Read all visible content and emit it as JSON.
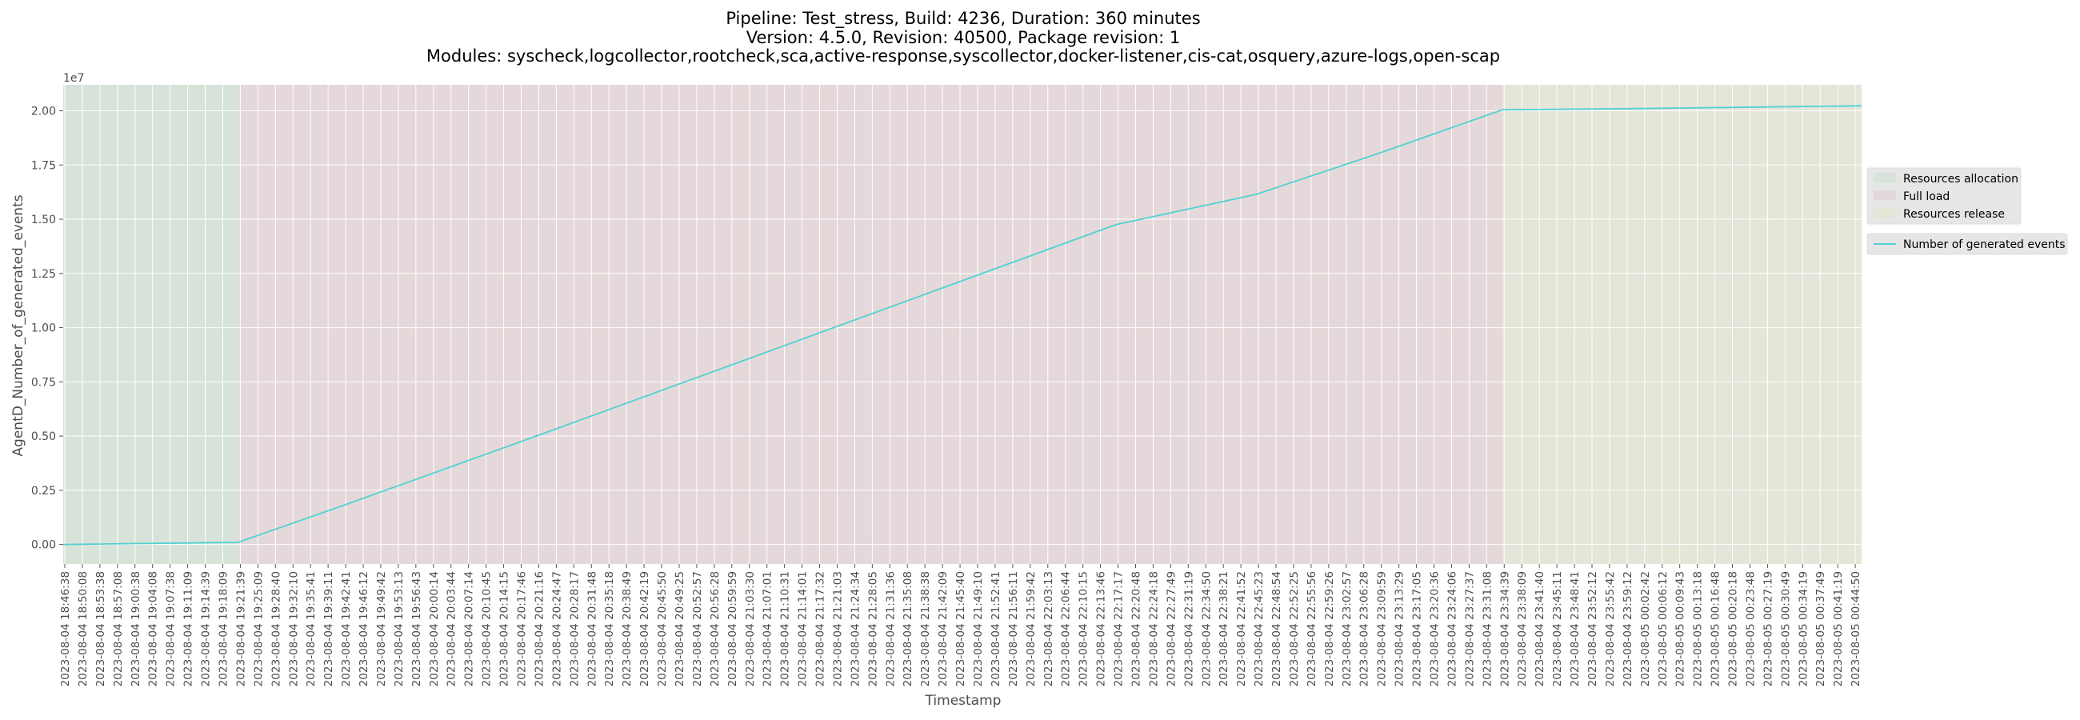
{
  "chart_data": {
    "type": "line",
    "title_lines": [
      "Pipeline: Test_stress, Build: 4236, Duration: 360 minutes",
      "Version: 4.5.0, Revision: 40500, Package revision: 1",
      "Modules: syscheck,logcollector,rootcheck,sca,active-response,syscollector,docker-listener,cis-cat,osquery,azure-logs,open-scap"
    ],
    "xlabel": "Timestamp",
    "ylabel": "AgentD_Number_of_generated_events",
    "y_offset_label": "1e7",
    "ylim": [
      -900000,
      21200000
    ],
    "y_ticks": [
      0,
      2500000,
      5000000,
      7500000,
      10000000,
      12500000,
      15000000,
      17500000,
      20000000
    ],
    "y_tick_labels": [
      "0.00",
      "0.25",
      "0.50",
      "0.75",
      "1.00",
      "1.25",
      "1.50",
      "1.75",
      "2.00"
    ],
    "x_tick_labels": [
      "2023-08-04 18:46:38",
      "2023-08-04 18:50:08",
      "2023-08-04 18:53:38",
      "2023-08-04 18:57:08",
      "2023-08-04 19:00:38",
      "2023-08-04 19:04:08",
      "2023-08-04 19:07:38",
      "2023-08-04 19:11:09",
      "2023-08-04 19:14:39",
      "2023-08-04 19:18:09",
      "2023-08-04 19:21:39",
      "2023-08-04 19:25:09",
      "2023-08-04 19:28:40",
      "2023-08-04 19:32:10",
      "2023-08-04 19:35:41",
      "2023-08-04 19:39:11",
      "2023-08-04 19:42:41",
      "2023-08-04 19:46:12",
      "2023-08-04 19:49:42",
      "2023-08-04 19:53:13",
      "2023-08-04 19:56:43",
      "2023-08-04 20:00:14",
      "2023-08-04 20:03:44",
      "2023-08-04 20:07:14",
      "2023-08-04 20:10:45",
      "2023-08-04 20:14:15",
      "2023-08-04 20:17:46",
      "2023-08-04 20:21:16",
      "2023-08-04 20:24:47",
      "2023-08-04 20:28:17",
      "2023-08-04 20:31:48",
      "2023-08-04 20:35:18",
      "2023-08-04 20:38:49",
      "2023-08-04 20:42:19",
      "2023-08-04 20:45:50",
      "2023-08-04 20:49:25",
      "2023-08-04 20:52:57",
      "2023-08-04 20:56:28",
      "2023-08-04 20:59:59",
      "2023-08-04 21:03:30",
      "2023-08-04 21:07:01",
      "2023-08-04 21:10:31",
      "2023-08-04 21:14:01",
      "2023-08-04 21:17:32",
      "2023-08-04 21:21:03",
      "2023-08-04 21:24:34",
      "2023-08-04 21:28:05",
      "2023-08-04 21:31:36",
      "2023-08-04 21:35:08",
      "2023-08-04 21:38:38",
      "2023-08-04 21:42:09",
      "2023-08-04 21:45:40",
      "2023-08-04 21:49:10",
      "2023-08-04 21:52:41",
      "2023-08-04 21:56:11",
      "2023-08-04 21:59:42",
      "2023-08-04 22:03:13",
      "2023-08-04 22:06:44",
      "2023-08-04 22:10:15",
      "2023-08-04 22:13:46",
      "2023-08-04 22:17:17",
      "2023-08-04 22:20:48",
      "2023-08-04 22:24:18",
      "2023-08-04 22:27:49",
      "2023-08-04 22:31:19",
      "2023-08-04 22:34:50",
      "2023-08-04 22:38:21",
      "2023-08-04 22:41:52",
      "2023-08-04 22:45:23",
      "2023-08-04 22:48:54",
      "2023-08-04 22:52:25",
      "2023-08-04 22:55:56",
      "2023-08-04 22:59:26",
      "2023-08-04 23:02:57",
      "2023-08-04 23:06:28",
      "2023-08-04 23:09:59",
      "2023-08-04 23:13:29",
      "2023-08-04 23:17:05",
      "2023-08-04 23:20:36",
      "2023-08-04 23:24:06",
      "2023-08-04 23:27:37",
      "2023-08-04 23:31:08",
      "2023-08-04 23:34:39",
      "2023-08-04 23:38:09",
      "2023-08-04 23:41:40",
      "2023-08-04 23:45:11",
      "2023-08-04 23:48:41",
      "2023-08-04 23:52:12",
      "2023-08-04 23:55:42",
      "2023-08-04 23:59:12",
      "2023-08-05 00:02:42",
      "2023-08-05 00:06:12",
      "2023-08-05 00:09:43",
      "2023-08-05 00:13:18",
      "2023-08-05 00:16:48",
      "2023-08-05 00:20:18",
      "2023-08-05 00:23:48",
      "2023-08-05 00:27:19",
      "2023-08-05 00:30:49",
      "2023-08-05 00:34:19",
      "2023-08-05 00:37:49",
      "2023-08-05 00:41:19",
      "2023-08-05 00:44:50"
    ],
    "phases": [
      {
        "name": "Resources allocation",
        "start": "2023-08-04 18:46:38",
        "end": "2023-08-04 19:21:39",
        "color": "#d7e2d9"
      },
      {
        "name": "Full load",
        "start": "2023-08-04 19:21:39",
        "end": "2023-08-04 23:34:39",
        "color": "#e5d8da"
      },
      {
        "name": "Resources release",
        "start": "2023-08-04 23:34:39",
        "end": "2023-08-05 00:46:30",
        "color": "#e5e5d8"
      }
    ],
    "x_start": "2023-08-04 18:46:38",
    "x_end": "2023-08-05 00:46:30",
    "series": [
      {
        "name": "Number of generated events",
        "color": "#4fd2d2",
        "points": [
          {
            "x": "2023-08-04 18:46:38",
            "y": 0
          },
          {
            "x": "2023-08-04 19:21:39",
            "y": 100000
          },
          {
            "x": "2023-08-04 19:42:41",
            "y": 1800000
          },
          {
            "x": "2023-08-04 20:21:16",
            "y": 5000000
          },
          {
            "x": "2023-08-04 21:00:00",
            "y": 8250000
          },
          {
            "x": "2023-08-04 21:38:38",
            "y": 11500000
          },
          {
            "x": "2023-08-04 22:17:17",
            "y": 14750000
          },
          {
            "x": "2023-08-04 22:45:23",
            "y": 16150000
          },
          {
            "x": "2023-08-04 23:10:00",
            "y": 18050000
          },
          {
            "x": "2023-08-04 23:34:39",
            "y": 20050000
          },
          {
            "x": "2023-08-05 00:00:00",
            "y": 20100000
          },
          {
            "x": "2023-08-05 00:46:30",
            "y": 20230000
          }
        ]
      }
    ],
    "grid": true,
    "legend_placement": "right"
  }
}
